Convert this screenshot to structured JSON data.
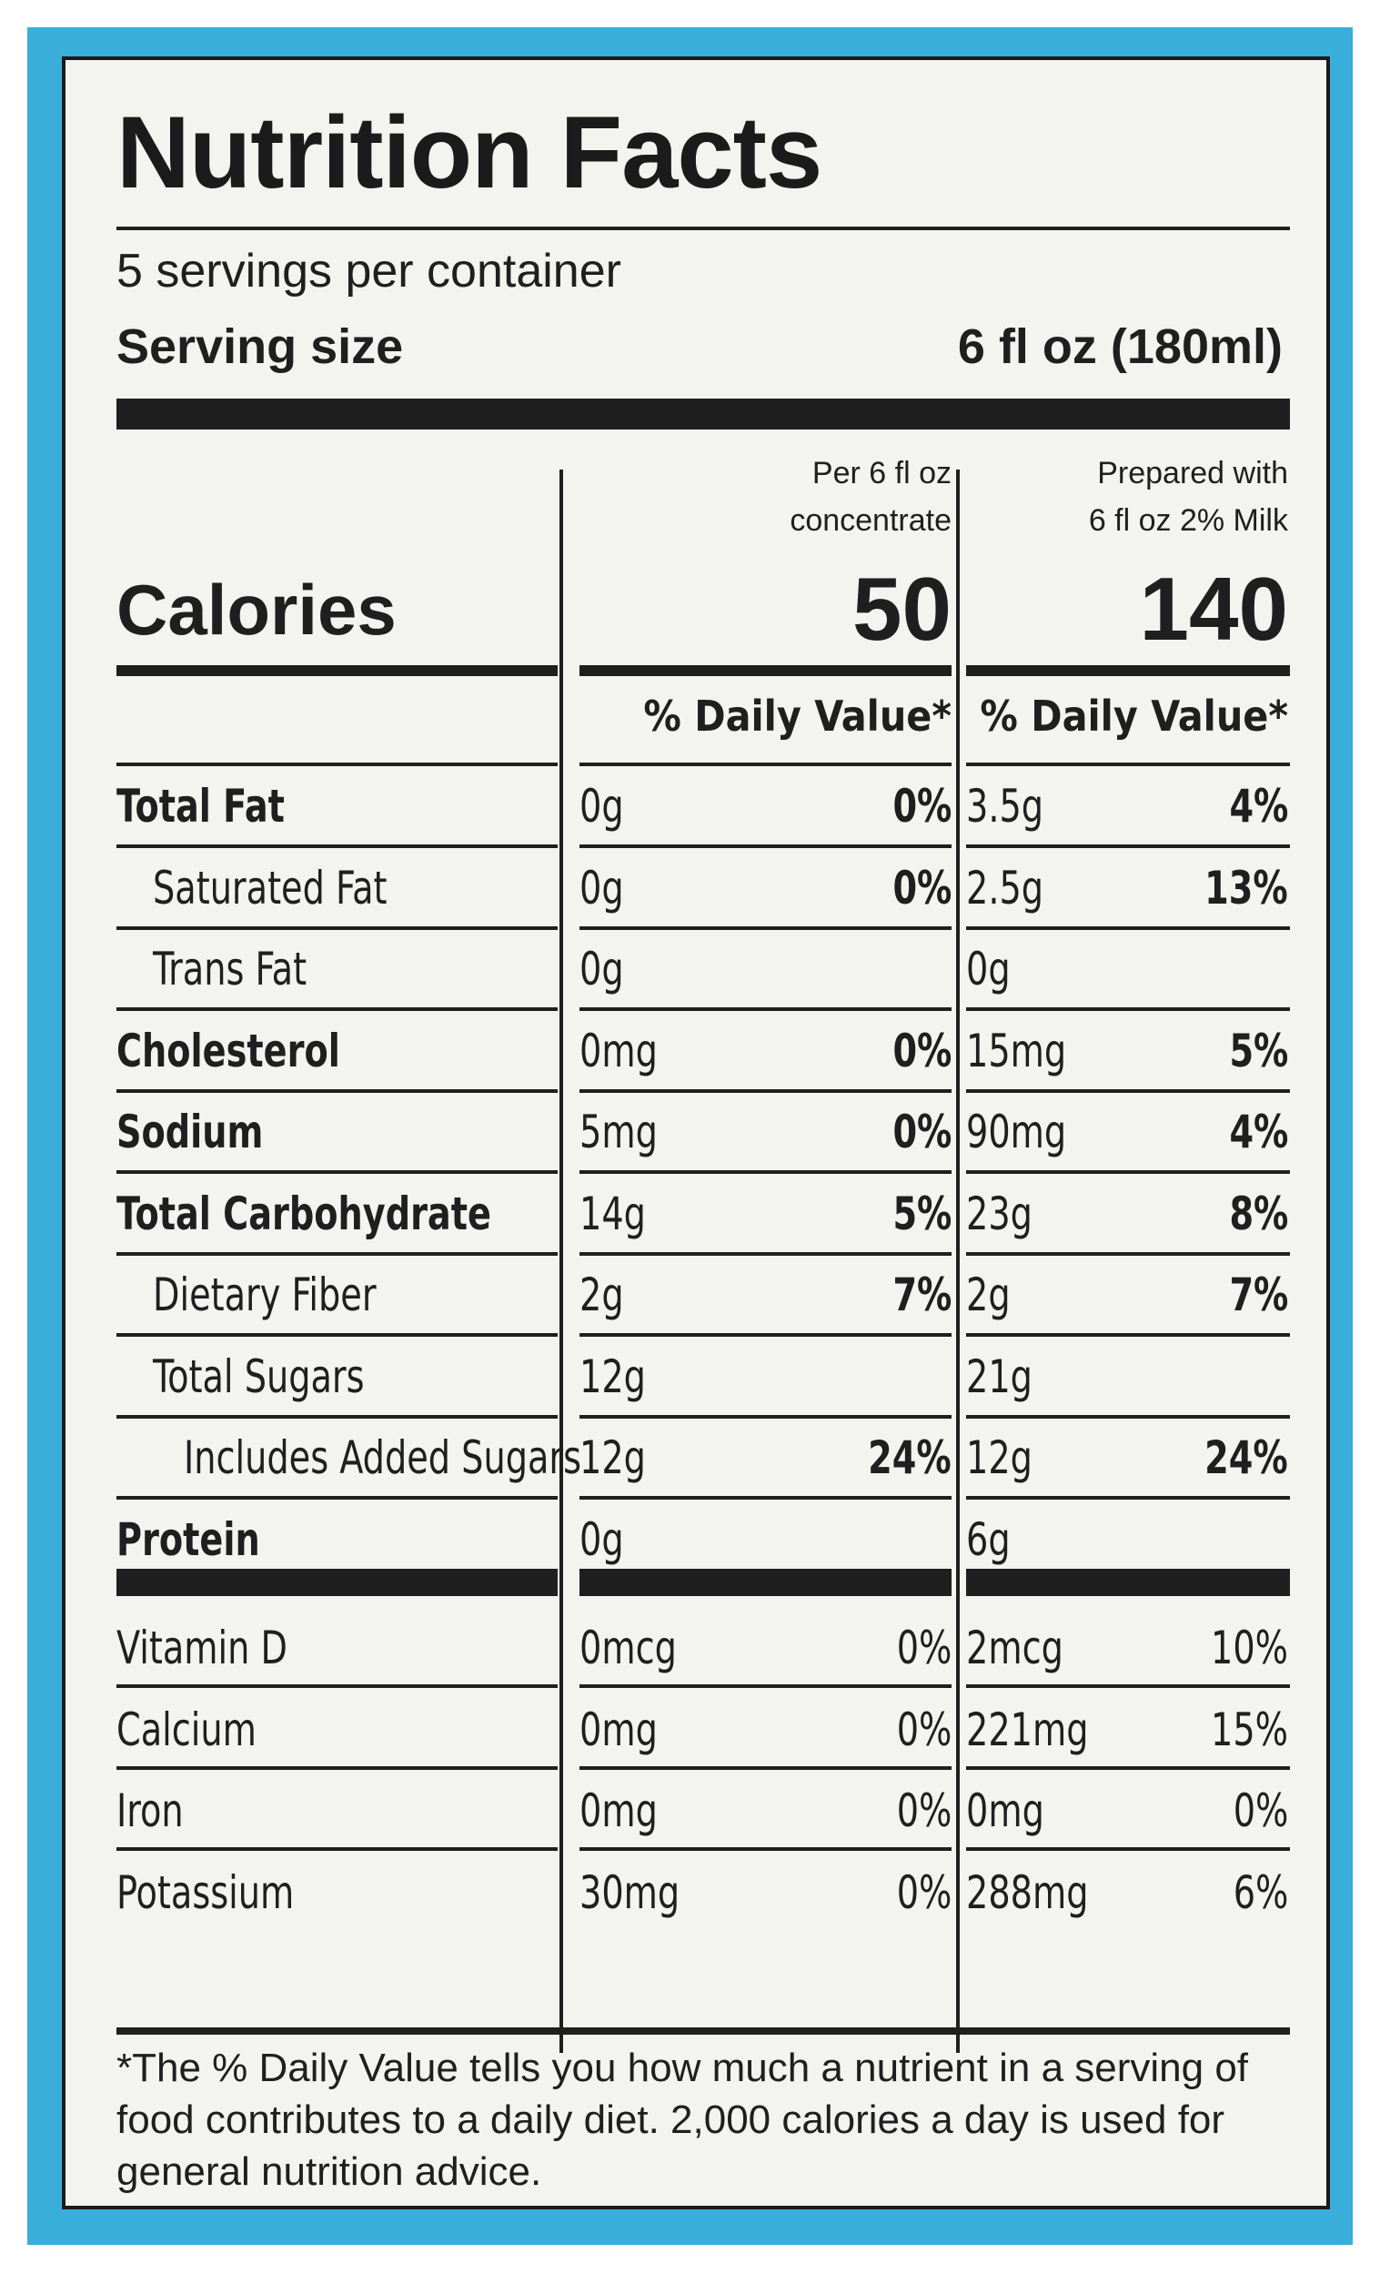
{
  "title": "Nutrition Facts",
  "servings_per_container": "5 servings per container",
  "serving_size_label": "Serving size",
  "serving_size_value": "6 fl oz (180ml)",
  "calories_label": "Calories",
  "columns": [
    {
      "header_line1": "Per 6 fl oz",
      "header_line2": "concentrate",
      "calories": "50",
      "dv_header": "% Daily Value*"
    },
    {
      "header_line1": "Prepared with",
      "header_line2": "6 fl oz 2% Milk",
      "calories": "140",
      "dv_header": "% Daily Value*"
    }
  ],
  "nutrients": [
    {
      "name": "Total Fat",
      "bold": true,
      "indent": 0,
      "c1_amt": "0g",
      "c1_dv": "0%",
      "c2_amt": "3.5g",
      "c2_dv": "4%"
    },
    {
      "name": "Saturated Fat",
      "bold": false,
      "indent": 1,
      "c1_amt": "0g",
      "c1_dv": "0%",
      "c2_amt": "2.5g",
      "c2_dv": "13%"
    },
    {
      "name": "Trans Fat",
      "bold": false,
      "indent": 1,
      "c1_amt": "0g",
      "c1_dv": "",
      "c2_amt": "0g",
      "c2_dv": ""
    },
    {
      "name": "Cholesterol",
      "bold": true,
      "indent": 0,
      "c1_amt": "0mg",
      "c1_dv": "0%",
      "c2_amt": "15mg",
      "c2_dv": "5%"
    },
    {
      "name": "Sodium",
      "bold": true,
      "indent": 0,
      "c1_amt": "5mg",
      "c1_dv": "0%",
      "c2_amt": "90mg",
      "c2_dv": "4%"
    },
    {
      "name": "Total Carbohydrate",
      "bold": true,
      "indent": 0,
      "c1_amt": "14g",
      "c1_dv": "5%",
      "c2_amt": "23g",
      "c2_dv": "8%"
    },
    {
      "name": "Dietary Fiber",
      "bold": false,
      "indent": 1,
      "c1_amt": "2g",
      "c1_dv": "7%",
      "c2_amt": "2g",
      "c2_dv": "7%"
    },
    {
      "name": "Total Sugars",
      "bold": false,
      "indent": 1,
      "c1_amt": "12g",
      "c1_dv": "",
      "c2_amt": "21g",
      "c2_dv": ""
    },
    {
      "name": "Includes Added Sugars",
      "bold": false,
      "indent": 2,
      "c1_amt": "12g",
      "c1_dv": "24%",
      "c2_amt": "12g",
      "c2_dv": "24%"
    },
    {
      "name": "Protein",
      "bold": true,
      "indent": 0,
      "c1_amt": "0g",
      "c1_dv": "",
      "c2_amt": "6g",
      "c2_dv": ""
    }
  ],
  "vitamins": [
    {
      "name": "Vitamin D",
      "c1_amt": "0mcg",
      "c1_dv": "0%",
      "c2_amt": "2mcg",
      "c2_dv": "10%"
    },
    {
      "name": "Calcium",
      "c1_amt": "0mg",
      "c1_dv": "0%",
      "c2_amt": "221mg",
      "c2_dv": "15%"
    },
    {
      "name": "Iron",
      "c1_amt": "0mg",
      "c1_dv": "0%",
      "c2_amt": "0mg",
      "c2_dv": "0%"
    },
    {
      "name": "Potassium",
      "c1_amt": "30mg",
      "c1_dv": "0%",
      "c2_amt": "288mg",
      "c2_dv": "6%"
    }
  ],
  "footnote": "*The % Daily Value tells you how much a nutrient in a serving of food contributes to a daily diet. 2,000 calories a day is used for general nutrition advice.",
  "colors": {
    "package_blue": "#3aaedb",
    "label_bg": "#f3f3ef",
    "ink": "#1f1f1f"
  }
}
